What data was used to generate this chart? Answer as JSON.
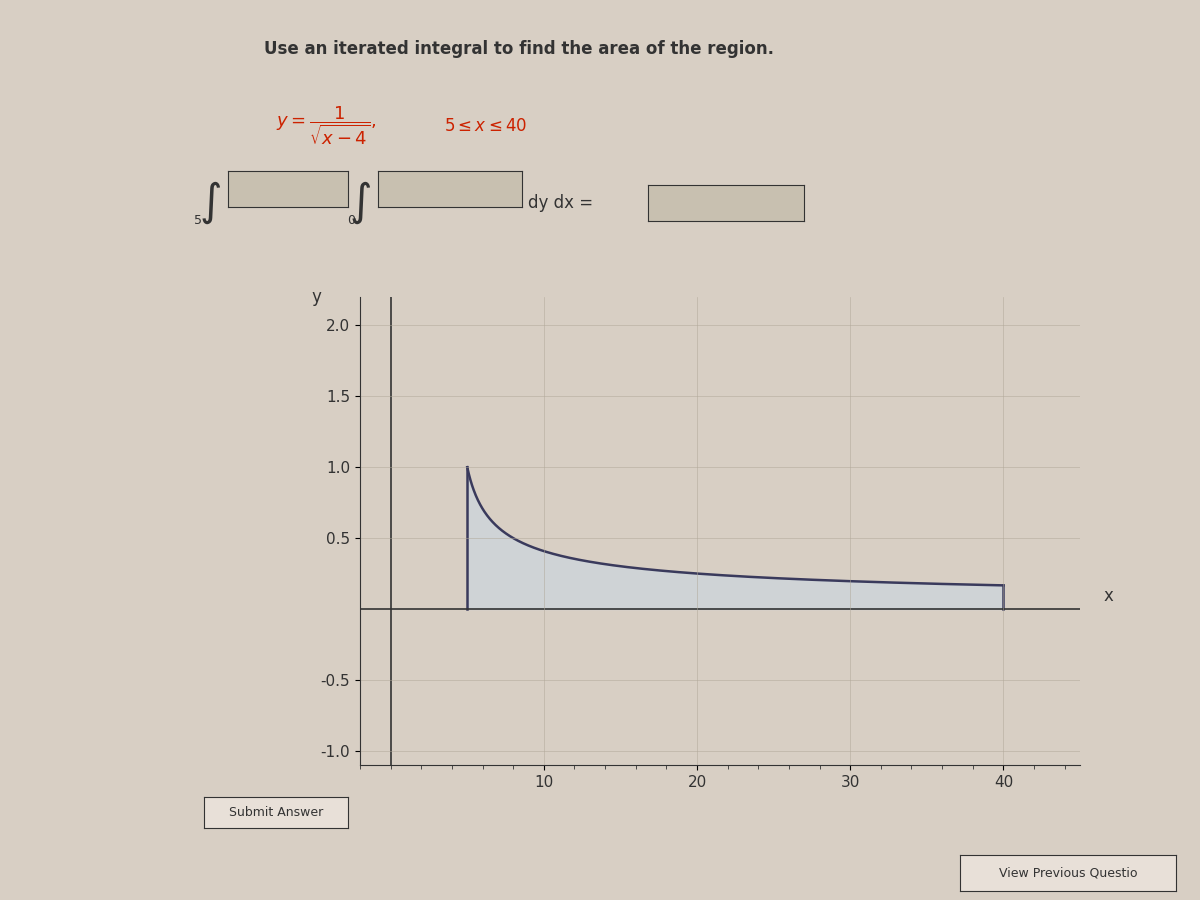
{
  "title": "Use an iterated integral to find the area of the region.",
  "formula": "y = 1 / sqrt(x - 4),   5 <= x <= 40",
  "x_start": 5,
  "x_end": 40,
  "xlim": [
    -2,
    45
  ],
  "ylim": [
    -1.1,
    2.2
  ],
  "xticks": [
    10,
    20,
    30,
    40
  ],
  "yticks": [
    -1.0,
    -0.5,
    0.5,
    1.0,
    1.5,
    2.0
  ],
  "xlabel": "x",
  "ylabel": "y",
  "curve_color": "#3a3a5c",
  "fill_color": "#c8d8e8",
  "fill_alpha": 0.5,
  "bg_color": "#d8cfc4",
  "plot_bg_color": "#d8cfc4",
  "grid_color": "#b0a898",
  "axis_color": "#333333",
  "text_color": "#333333",
  "formula_color_main": "#cc2200",
  "input_box_color": "#c8c0b0",
  "submit_button_text": "Submit Answer",
  "view_prev_text": "View Previous Questio",
  "dy_dx_label": "dy dx =",
  "integral_label_lower_outer": "5",
  "integral_label_upper_outer": "",
  "integral_label_lower_inner": "0",
  "integral_label_upper_inner": "",
  "tick_minor_count": 8
}
